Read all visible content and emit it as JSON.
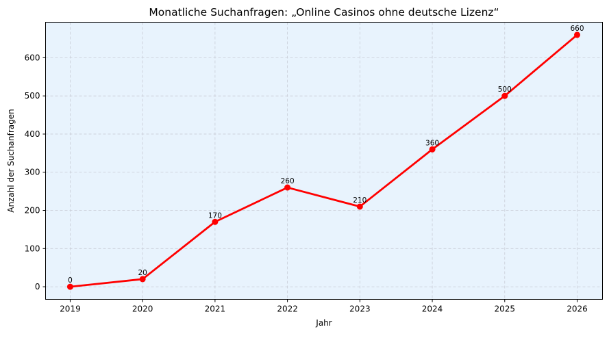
{
  "chart_data": {
    "type": "line",
    "title": "Monatliche Suchanfragen: „Online Casinos ohne deutsche Lizenz“",
    "xlabel": "Jahr",
    "ylabel": "Anzahl der Suchanfragen",
    "x": [
      2019,
      2020,
      2021,
      2022,
      2023,
      2024,
      2025,
      2026
    ],
    "series": [
      {
        "values": [
          0,
          20,
          170,
          260,
          210,
          360,
          500,
          660
        ],
        "color": "#ff0000",
        "marker": "circle"
      }
    ],
    "data_labels": [
      "0",
      "20",
      "170",
      "260",
      "210",
      "360",
      "500",
      "660"
    ],
    "xticks": [
      "2019",
      "2020",
      "2021",
      "2022",
      "2023",
      "2024",
      "2025",
      "2026"
    ],
    "yticks": [
      "0",
      "100",
      "200",
      "300",
      "400",
      "500",
      "600"
    ],
    "xlim": [
      2018.66,
      2026.35
    ],
    "ylim": [
      -33,
      693
    ],
    "grid": true,
    "background_color": "#e8f3fd",
    "grid_color": "#c8ccd6"
  }
}
